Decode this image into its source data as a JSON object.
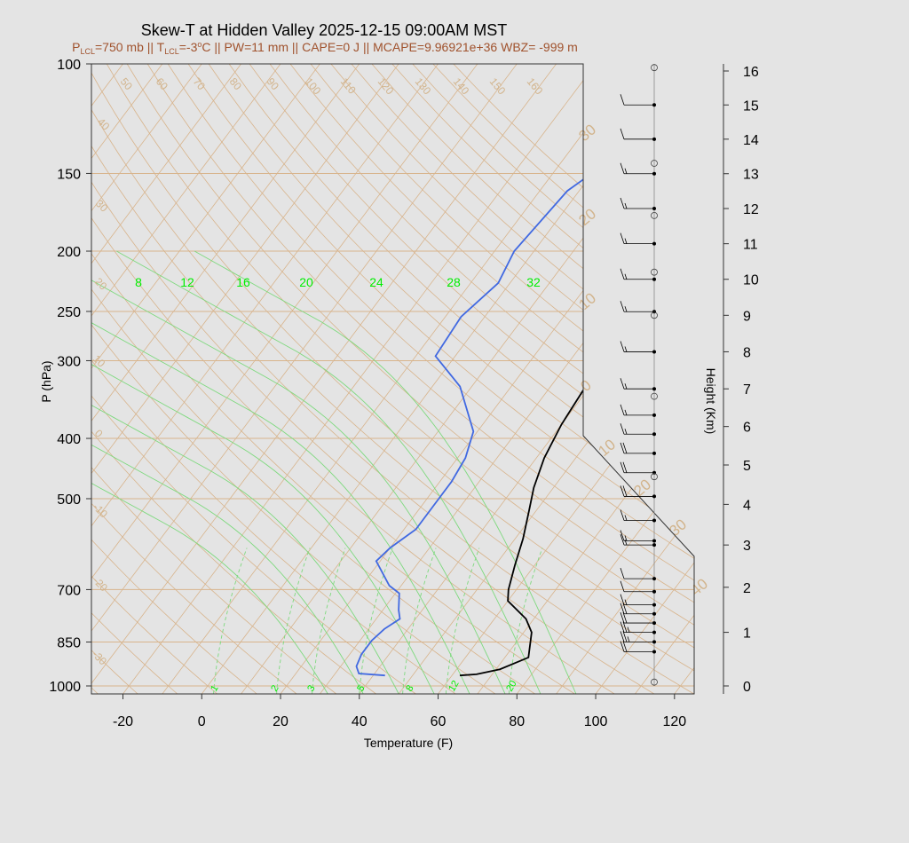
{
  "chart_data": {
    "type": "line",
    "title": "Skew-T at Hidden Valley 2025-12-15 09:00AM MST",
    "subtitle": {
      "lcl_p_prefix": "P",
      "lcl_p_sub": "LCL",
      "lcl_p_rest": "=750 mb || T",
      "lcl_t_sub": "LCL",
      "lcl_t_rest": "=-3",
      "degree": "o",
      "tail": "C || PW=11 mm || CAPE=0 J || MCAPE=9.96921e+36 WBZ= -999 m"
    },
    "xlabel": "Temperature (F)",
    "ylabel": "P (hPa)",
    "y2label": "Height (Km)",
    "xlim": [
      -28,
      125
    ],
    "ylim": [
      1030,
      100
    ],
    "x_ticks": [
      "-20",
      "0",
      "20",
      "40",
      "60",
      "80",
      "100",
      "120"
    ],
    "p_ticks": [
      "100",
      "150",
      "200",
      "250",
      "300",
      "400",
      "500",
      "700",
      "850",
      "1000"
    ],
    "height_ticks": [
      "0",
      "1",
      "2",
      "3",
      "4",
      "5",
      "6",
      "7",
      "8",
      "9",
      "10",
      "11",
      "12",
      "13",
      "14",
      "15",
      "16"
    ],
    "height_ranges_km": {
      "bottom": 0,
      "top": 16.3
    },
    "skew_isotherm_labels": [
      "50",
      "60",
      "70",
      "80",
      "90",
      "100",
      "110",
      "120",
      "130",
      "140",
      "150",
      "160"
    ],
    "left_isotherm_labels": [
      "40",
      "30",
      "20",
      "10",
      "0",
      "-10",
      "-20",
      "-30"
    ],
    "dry_adiabat_labels": [
      "30",
      "20",
      "10",
      "0",
      "10",
      "20",
      "30",
      "40"
    ],
    "mixing_ratio_top_labels": [
      "8",
      "12",
      "16",
      "20",
      "24",
      "28",
      "32"
    ],
    "mixing_ratio_bottom_labels": [
      "1",
      "2",
      "3",
      "5",
      "8",
      "12",
      "20"
    ],
    "series": [
      {
        "name": "temperature",
        "color": "#000000",
        "points_p_tempF": [
          [
            962,
            62
          ],
          [
            958,
            66
          ],
          [
            940,
            71
          ],
          [
            900,
            76
          ],
          [
            820,
            72
          ],
          [
            780,
            68
          ],
          [
            730,
            60
          ],
          [
            700,
            58
          ],
          [
            640,
            55
          ],
          [
            580,
            52
          ],
          [
            520,
            48
          ],
          [
            480,
            45
          ],
          [
            430,
            42
          ],
          [
            380,
            40
          ],
          [
            335,
            39
          ],
          [
            300,
            40
          ],
          [
            260,
            42
          ],
          [
            230,
            44
          ],
          [
            180,
            48
          ],
          [
            130,
            53
          ],
          [
            100,
            58
          ]
        ]
      },
      {
        "name": "dewpoint",
        "color": "#4169e1",
        "points_p_tempF": [
          [
            962,
            43
          ],
          [
            955,
            36
          ],
          [
            930,
            34
          ],
          [
            890,
            33
          ],
          [
            845,
            33
          ],
          [
            810,
            34
          ],
          [
            780,
            36
          ],
          [
            755,
            34
          ],
          [
            710,
            31
          ],
          [
            690,
            27
          ],
          [
            630,
            19
          ],
          [
            600,
            20
          ],
          [
            560,
            23
          ],
          [
            500,
            23
          ],
          [
            470,
            23
          ],
          [
            430,
            22
          ],
          [
            390,
            19
          ],
          [
            330,
            7
          ],
          [
            295,
            -5
          ],
          [
            255,
            -6
          ],
          [
            225,
            -3
          ],
          [
            200,
            -5
          ],
          [
            160,
            -3
          ],
          [
            100,
            18
          ]
        ]
      }
    ],
    "wind_barbs_note": "wind barbs with speed in knots by height",
    "wind_barbs_km": [
      [
        0.6,
        20
      ],
      [
        0.8,
        25
      ],
      [
        1.0,
        25
      ],
      [
        1.2,
        20
      ],
      [
        1.4,
        20
      ],
      [
        1.6,
        15
      ],
      [
        1.9,
        10
      ],
      [
        2.2,
        10
      ],
      [
        3.0,
        15
      ],
      [
        3.1,
        15
      ],
      [
        3.6,
        15
      ],
      [
        4.2,
        20
      ],
      [
        4.8,
        20
      ],
      [
        5.3,
        20
      ],
      [
        5.8,
        15
      ],
      [
        6.3,
        15
      ],
      [
        7.0,
        15
      ],
      [
        8.0,
        15
      ],
      [
        9.1,
        15
      ],
      [
        10.0,
        15
      ],
      [
        11.0,
        15
      ],
      [
        12.0,
        15
      ],
      [
        13.0,
        15
      ],
      [
        14.0,
        10
      ],
      [
        15.0,
        10
      ]
    ]
  }
}
